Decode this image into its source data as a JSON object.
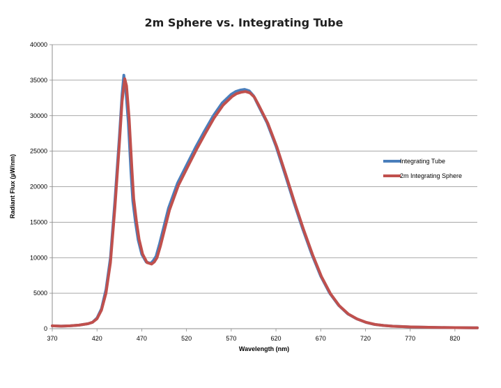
{
  "chart_data": {
    "type": "line",
    "title": "2m Sphere vs. Integrating Tube",
    "xlabel": "Wavelength (nm)",
    "ylabel": "Radiant Flux (µW/nm)",
    "xlim": [
      370,
      845
    ],
    "ylim": [
      0,
      40000
    ],
    "xticks": [
      370,
      420,
      470,
      520,
      570,
      620,
      670,
      720,
      770,
      820
    ],
    "yticks": [
      0,
      5000,
      10000,
      15000,
      20000,
      25000,
      30000,
      35000,
      40000
    ],
    "grid": true,
    "legend_position": "right",
    "series": [
      {
        "name": "Integrating Tube",
        "color": "#4a7ebb",
        "x": [
          370,
          380,
          390,
          400,
          410,
          415,
          420,
          425,
          430,
          435,
          440,
          445,
          448,
          450,
          452,
          455,
          458,
          460,
          463,
          466,
          470,
          475,
          480,
          483,
          486,
          490,
          495,
          500,
          510,
          520,
          530,
          540,
          550,
          560,
          570,
          575,
          580,
          585,
          590,
          595,
          600,
          610,
          620,
          630,
          640,
          650,
          660,
          670,
          680,
          690,
          700,
          710,
          720,
          730,
          740,
          750,
          760,
          770,
          780,
          790,
          800,
          810,
          820,
          830,
          840,
          845
        ],
        "values": [
          400,
          350,
          400,
          500,
          700,
          900,
          1500,
          2800,
          5500,
          10000,
          18000,
          27000,
          33000,
          35700,
          34000,
          29000,
          22000,
          18000,
          15000,
          12500,
          10500,
          9400,
          9200,
          9600,
          10200,
          12000,
          14500,
          17000,
          20500,
          23000,
          25500,
          27800,
          30000,
          31800,
          33000,
          33400,
          33600,
          33700,
          33500,
          32800,
          31500,
          29000,
          25700,
          21800,
          17800,
          14000,
          10500,
          7400,
          5000,
          3300,
          2100,
          1400,
          900,
          600,
          450,
          350,
          300,
          250,
          220,
          200,
          180,
          160,
          150,
          140,
          130,
          120
        ]
      },
      {
        "name": "2m Integrating Sphere",
        "color": "#c0504d",
        "x": [
          370,
          380,
          390,
          400,
          410,
          415,
          420,
          425,
          430,
          435,
          440,
          445,
          448,
          451,
          453,
          456,
          459,
          461,
          464,
          467,
          471,
          476,
          481,
          484,
          487,
          491,
          496,
          501,
          511,
          521,
          531,
          541,
          551,
          561,
          571,
          576,
          581,
          586,
          591,
          596,
          601,
          611,
          621,
          631,
          641,
          651,
          661,
          671,
          681,
          691,
          701,
          711,
          721,
          731,
          741,
          751,
          761,
          771,
          781,
          791,
          801,
          811,
          821,
          831,
          841,
          845
        ],
        "values": [
          400,
          350,
          400,
          500,
          700,
          900,
          1400,
          2600,
          5000,
          9300,
          17000,
          26000,
          32000,
          35200,
          34200,
          29500,
          22500,
          18300,
          15200,
          12600,
          10500,
          9300,
          9100,
          9400,
          10000,
          11700,
          14200,
          16700,
          20200,
          22700,
          25200,
          27500,
          29700,
          31500,
          32700,
          33100,
          33300,
          33400,
          33200,
          32600,
          31400,
          28900,
          25600,
          21700,
          17700,
          13900,
          10400,
          7300,
          4900,
          3200,
          2050,
          1350,
          880,
          590,
          440,
          340,
          290,
          245,
          215,
          195,
          175,
          158,
          148,
          138,
          128,
          118
        ]
      }
    ]
  }
}
